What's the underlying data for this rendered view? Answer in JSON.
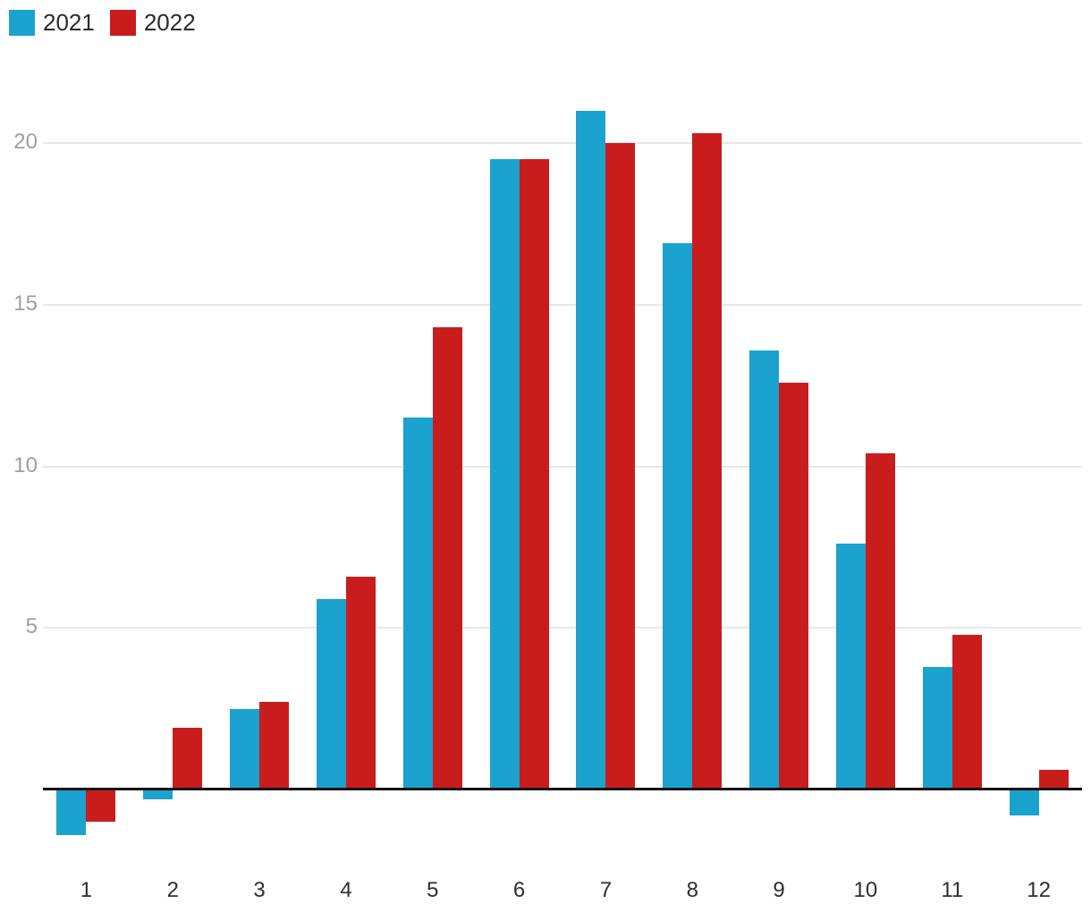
{
  "legend": {
    "items": [
      {
        "label": "2021",
        "color": "#1ba2ce"
      },
      {
        "label": "2022",
        "color": "#c91d1d"
      }
    ]
  },
  "chart_data": {
    "type": "bar",
    "title": "",
    "xlabel": "",
    "ylabel": "",
    "categories": [
      "1",
      "2",
      "3",
      "4",
      "5",
      "6",
      "7",
      "8",
      "9",
      "10",
      "11",
      "12"
    ],
    "series": [
      {
        "name": "2021",
        "color": "#1ba2ce",
        "values": [
          -1.4,
          -0.3,
          2.5,
          5.9,
          11.5,
          19.5,
          21.0,
          16.9,
          13.6,
          7.6,
          3.8,
          -0.8
        ]
      },
      {
        "name": "2022",
        "color": "#c91d1d",
        "values": [
          -1.0,
          1.9,
          2.7,
          6.6,
          14.3,
          19.5,
          20.0,
          20.3,
          12.6,
          10.4,
          4.8,
          0.6
        ]
      }
    ],
    "y_ticks": [
      5,
      10,
      15,
      20
    ],
    "ylim": [
      -2.5,
      22
    ],
    "grid": "horizontal-light",
    "legend_position": "top-left",
    "axis_color": "#111111",
    "gridline_color": "#e8e8e8",
    "y_label_color": "#9e9e9e",
    "x_label_color": "#2e2e2e"
  }
}
